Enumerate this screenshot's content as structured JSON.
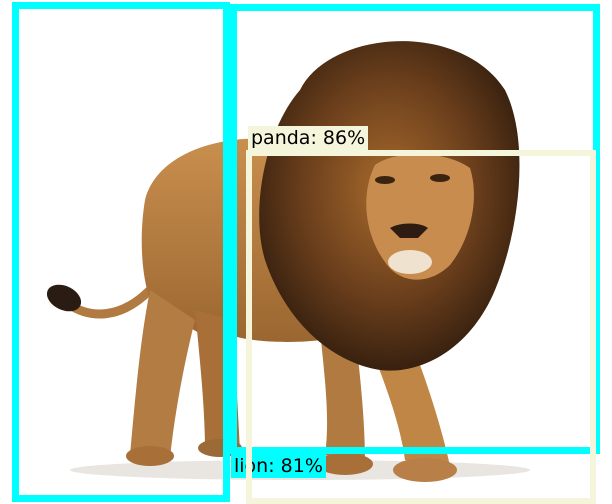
{
  "image": {
    "subject_icon": "lion-photo",
    "background": "#ffffff"
  },
  "detections": [
    {
      "label": "lion: 81%",
      "color": "#00ffff"
    },
    {
      "label": "panda: 86%",
      "color": "#f5f5dc"
    }
  ]
}
